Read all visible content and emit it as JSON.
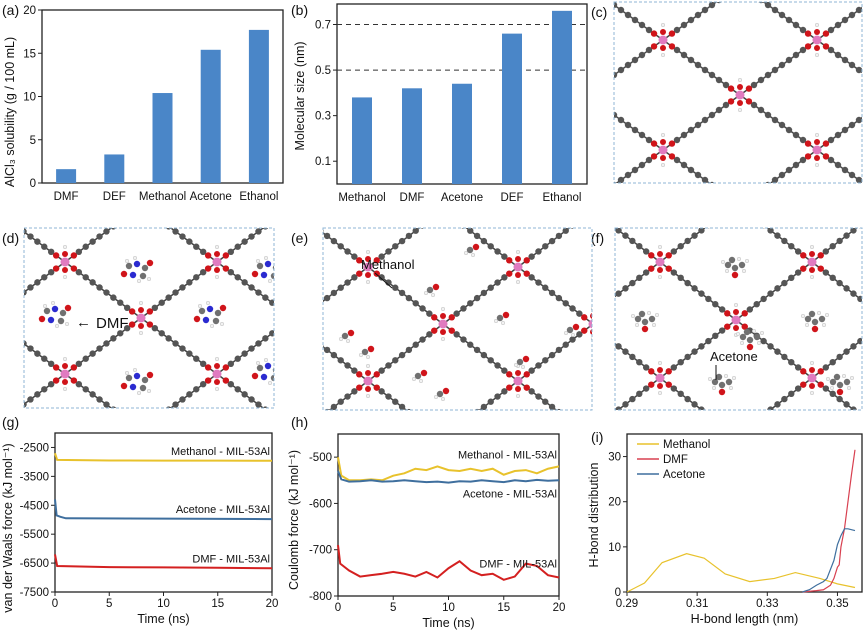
{
  "panels": {
    "a": "(a)",
    "b": "(b)",
    "c": "(c)",
    "d": "(d)",
    "e": "(e)",
    "f": "(f)",
    "g": "(g)",
    "h": "(h)",
    "i": "(i)"
  },
  "structures": {
    "d_label": "DMF",
    "e_label": "Methanol",
    "f_label": "Acetone",
    "colors": {
      "linker": "#555555",
      "oxygen": "#d0141a",
      "metal": "#e07bc0",
      "nitrogen": "#2a2ad0",
      "hydrogen": "#f2f2f2",
      "box": "#8fb6d6"
    }
  },
  "chart_data": [
    {
      "panel": "a",
      "type": "bar",
      "categories": [
        "DMF",
        "DEF",
        "Methanol",
        "Acetone",
        "Ethanol"
      ],
      "values": [
        1.6,
        3.3,
        10.4,
        15.4,
        17.7
      ],
      "xlabel": "",
      "ylabel": "AlCl₃ solubility (g / 100 mL)",
      "ylim": [
        0,
        20
      ],
      "yticks": [
        "0",
        "5",
        "10",
        "15",
        "20"
      ],
      "grid": false,
      "color": "#4a86c8"
    },
    {
      "panel": "b",
      "type": "bar",
      "categories": [
        "Methanol",
        "DMF",
        "Acetone",
        "DEF",
        "Ethanol"
      ],
      "values": [
        0.38,
        0.42,
        0.44,
        0.66,
        0.76
      ],
      "xlabel": "",
      "ylabel": "Molecular size (nm)",
      "ylim": [
        0,
        0.79
      ],
      "yticks": [
        "0.1",
        "0.3",
        "0.5",
        "0.7"
      ],
      "reference_lines": [
        0.5,
        0.7
      ],
      "grid": false,
      "color": "#4a86c8"
    },
    {
      "panel": "g",
      "type": "line",
      "xlabel": "Time (ns)",
      "ylabel": "van der Waals force (kJ mol⁻¹)",
      "xlim": [
        0,
        20
      ],
      "ylim": [
        -7500,
        -2000
      ],
      "xticks": [
        "0",
        "5",
        "10",
        "15",
        "20"
      ],
      "yticks": [
        "-2500",
        "-3500",
        "-4500",
        "-5500",
        "-6500",
        "-7500"
      ],
      "series": [
        {
          "name": "Methanol - MIL-53Al",
          "color": "#e8c22c",
          "points": [
            [
              0,
              -2700
            ],
            [
              0.2,
              -2930
            ],
            [
              5,
              -2950
            ],
            [
              10,
              -2955
            ],
            [
              15,
              -2955
            ],
            [
              20,
              -2960
            ]
          ]
        },
        {
          "name": "Acetone - MIL-53Al",
          "color": "#3f6f9e",
          "points": [
            [
              0,
              -4300
            ],
            [
              0.15,
              -4850
            ],
            [
              0.5,
              -4900
            ],
            [
              1,
              -4950
            ],
            [
              10,
              -4960
            ],
            [
              20,
              -4980
            ]
          ]
        },
        {
          "name": "DMF - MIL-53Al",
          "color": "#d42020",
          "points": [
            [
              0,
              -6200
            ],
            [
              0.2,
              -6600
            ],
            [
              5,
              -6640
            ],
            [
              10,
              -6650
            ],
            [
              15,
              -6660
            ],
            [
              20,
              -6680
            ]
          ]
        }
      ]
    },
    {
      "panel": "h",
      "type": "line",
      "xlabel": "Time (ns)",
      "ylabel": "Coulomb force (kJ mol⁻¹)",
      "xlim": [
        0,
        20
      ],
      "ylim": [
        -800,
        -450
      ],
      "xticks": [
        "0",
        "5",
        "10",
        "15",
        "20"
      ],
      "yticks": [
        "-500",
        "-600",
        "-700",
        "-800"
      ],
      "series": [
        {
          "name": "Methanol - MIL-53Al",
          "color": "#e8c22c",
          "points": [
            [
              0,
              -500
            ],
            [
              0.3,
              -540
            ],
            [
              1,
              -550
            ],
            [
              2,
              -550
            ],
            [
              3,
              -548
            ],
            [
              4,
              -550
            ],
            [
              5,
              -540
            ],
            [
              6,
              -535
            ],
            [
              7,
              -525
            ],
            [
              8,
              -528
            ],
            [
              9,
              -520
            ],
            [
              10,
              -528
            ],
            [
              11,
              -530
            ],
            [
              12,
              -525
            ],
            [
              13,
              -530
            ],
            [
              14,
              -525
            ],
            [
              15,
              -538
            ],
            [
              16,
              -530
            ],
            [
              17,
              -528
            ],
            [
              18,
              -535
            ],
            [
              19,
              -525
            ],
            [
              20,
              -520
            ]
          ]
        },
        {
          "name": "Acetone - MIL-53Al",
          "color": "#3f6f9e",
          "points": [
            [
              0,
              -530
            ],
            [
              0.3,
              -548
            ],
            [
              1,
              -553
            ],
            [
              2,
              -552
            ],
            [
              3,
              -550
            ],
            [
              4,
              -553
            ],
            [
              5,
              -552
            ],
            [
              6,
              -550
            ],
            [
              7,
              -552
            ],
            [
              8,
              -554
            ],
            [
              9,
              -553
            ],
            [
              10,
              -555
            ],
            [
              11,
              -552
            ],
            [
              12,
              -553
            ],
            [
              13,
              -550
            ],
            [
              14,
              -552
            ],
            [
              15,
              -554
            ],
            [
              16,
              -550
            ],
            [
              17,
              -552
            ],
            [
              18,
              -549
            ],
            [
              19,
              -551
            ],
            [
              20,
              -550
            ]
          ]
        },
        {
          "name": "DMF - MIL-53Al",
          "color": "#d42020",
          "points": [
            [
              0,
              -690
            ],
            [
              0.2,
              -730
            ],
            [
              1,
              -745
            ],
            [
              2,
              -758
            ],
            [
              3,
              -755
            ],
            [
              4,
              -752
            ],
            [
              5,
              -748
            ],
            [
              6,
              -752
            ],
            [
              7,
              -758
            ],
            [
              8,
              -748
            ],
            [
              9,
              -760
            ],
            [
              10,
              -740
            ],
            [
              11,
              -725
            ],
            [
              12,
              -745
            ],
            [
              13,
              -755
            ],
            [
              14,
              -752
            ],
            [
              15,
              -765
            ],
            [
              16,
              -758
            ],
            [
              17,
              -730
            ],
            [
              18,
              -735
            ],
            [
              19,
              -755
            ],
            [
              20,
              -760
            ]
          ]
        }
      ]
    },
    {
      "panel": "i",
      "type": "line",
      "xlabel": "H-bond length (nm)",
      "ylabel": "H-bond distribution",
      "xlim": [
        0.29,
        0.357
      ],
      "ylim": [
        0,
        35
      ],
      "xticks": [
        "0.29",
        "0.31",
        "0.33",
        "0.35"
      ],
      "yticks": [
        "0",
        "10",
        "20",
        "30"
      ],
      "legend": "top-left",
      "series": [
        {
          "name": "Methanol",
          "color": "#e8c22c",
          "points": [
            [
              0.29,
              0
            ],
            [
              0.295,
              2
            ],
            [
              0.3,
              6.5
            ],
            [
              0.307,
              8.5
            ],
            [
              0.312,
              7.5
            ],
            [
              0.318,
              4
            ],
            [
              0.325,
              2.3
            ],
            [
              0.332,
              3
            ],
            [
              0.338,
              4.3
            ],
            [
              0.345,
              3
            ],
            [
              0.35,
              1.8
            ],
            [
              0.355,
              1
            ]
          ]
        },
        {
          "name": "DMF",
          "color": "#d84050",
          "points": [
            [
              0.34,
              0
            ],
            [
              0.344,
              0.3
            ],
            [
              0.346,
              0.5
            ],
            [
              0.348,
              1.5
            ],
            [
              0.349,
              3
            ],
            [
              0.35,
              5.5
            ],
            [
              0.3505,
              6
            ],
            [
              0.351,
              10
            ],
            [
              0.352,
              14
            ],
            [
              0.353,
              20
            ],
            [
              0.354,
              26
            ],
            [
              0.355,
              31.5
            ]
          ]
        },
        {
          "name": "Acetone",
          "color": "#3f6f9e",
          "points": [
            [
              0.34,
              0
            ],
            [
              0.342,
              0.5
            ],
            [
              0.344,
              1.5
            ],
            [
              0.346,
              2.3
            ],
            [
              0.347,
              3
            ],
            [
              0.349,
              7
            ],
            [
              0.35,
              10.5
            ],
            [
              0.351,
              12.5
            ],
            [
              0.352,
              14
            ],
            [
              0.353,
              14
            ],
            [
              0.355,
              13.6
            ]
          ]
        }
      ]
    }
  ]
}
